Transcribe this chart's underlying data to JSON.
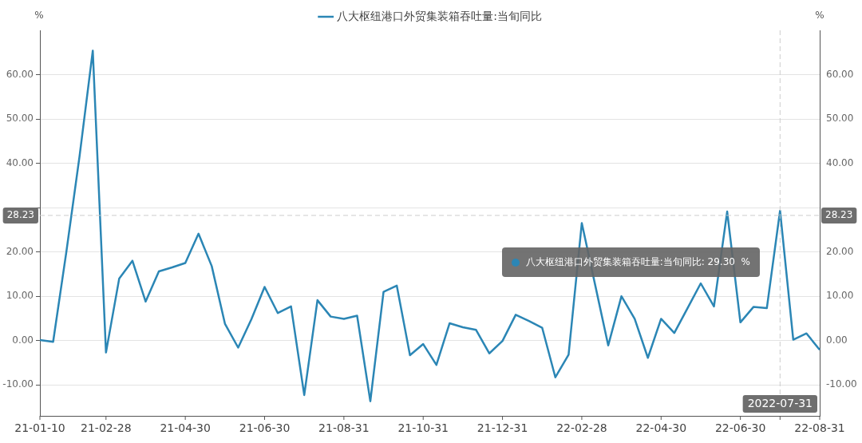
{
  "chart_data": {
    "type": "line",
    "categories": [
      "21-01-10",
      null,
      null,
      null,
      null,
      "21-02-28",
      null,
      null,
      null,
      null,
      null,
      "21-04-30",
      null,
      null,
      null,
      null,
      null,
      "21-06-30",
      null,
      null,
      null,
      null,
      null,
      "21-08-31",
      null,
      null,
      null,
      null,
      null,
      "21-10-31",
      null,
      null,
      null,
      null,
      null,
      "21-12-31",
      null,
      null,
      null,
      null,
      null,
      "22-02-28",
      null,
      null,
      null,
      null,
      null,
      "22-04-30",
      null,
      null,
      null,
      null,
      null,
      "22-06-30",
      null,
      null,
      "2022-07-31",
      null,
      null,
      "22-08-31"
    ],
    "series": [
      {
        "name": "八大枢纽港口外贸集装箱吞吐量:当旬同比",
        "color": "#2b86b5",
        "values": [
          0.1,
          -0.3,
          20.0,
          41.6,
          65.4,
          -2.7,
          14.0,
          18.0,
          8.8,
          15.6,
          16.5,
          17.5,
          24.1,
          16.8,
          3.8,
          -1.6,
          4.8,
          12.1,
          6.2,
          7.7,
          -12.3,
          9.1,
          5.4,
          4.9,
          5.6,
          -13.7,
          11.0,
          12.4,
          -3.3,
          -0.8,
          -5.5,
          3.9,
          3.0,
          2.4,
          -2.9,
          -0.1,
          5.8,
          4.4,
          2.9,
          -8.3,
          -3.2,
          26.5,
          12.7,
          -1.1,
          10.0,
          4.9,
          -3.9,
          4.9,
          1.7,
          7.3,
          12.9,
          7.7,
          29.1,
          4.1,
          7.6,
          7.3,
          29.3,
          0.2,
          1.6,
          -2.1
        ]
      }
    ],
    "ylabel": "%",
    "y2label": "%",
    "ylim": [
      -17,
      70
    ],
    "yticks": [
      {
        "value": -10,
        "label": "-10.00"
      },
      {
        "value": 0,
        "label": "0.00"
      },
      {
        "value": 10,
        "label": "10.00"
      },
      {
        "value": 20,
        "label": "20.00"
      },
      {
        "value": 30,
        "label": null
      },
      {
        "value": 40,
        "label": "40.00"
      },
      {
        "value": 50,
        "label": "50.00"
      },
      {
        "value": 60,
        "label": "60.00"
      }
    ],
    "y2lim": [
      -17,
      70
    ],
    "y2ticks": [
      {
        "value": -10,
        "label": "-10.00"
      },
      {
        "value": 0,
        "label": "0.00"
      },
      {
        "value": 10,
        "label": "10.00"
      },
      {
        "value": 20,
        "label": "20.00"
      },
      {
        "value": 30,
        "label": null
      },
      {
        "value": 40,
        "label": "40.00"
      },
      {
        "value": 50,
        "label": "50.00"
      },
      {
        "value": 60,
        "label": "60.00"
      }
    ],
    "ref_lines": [
      {
        "axis": "y",
        "value": 28.23,
        "label": "28.23",
        "color": "#cccccc",
        "line_style": "dashed"
      },
      {
        "axis": "x",
        "value": "2022-07-31",
        "color": "#cccccc",
        "line_style": "dashed"
      }
    ],
    "annotations": [
      "八大枢纽港口外贸集装箱吞吐量:当旬同比: 29.30  %"
    ],
    "grid": "y",
    "legend": "top",
    "marker": "none",
    "line_style": "solid"
  }
}
